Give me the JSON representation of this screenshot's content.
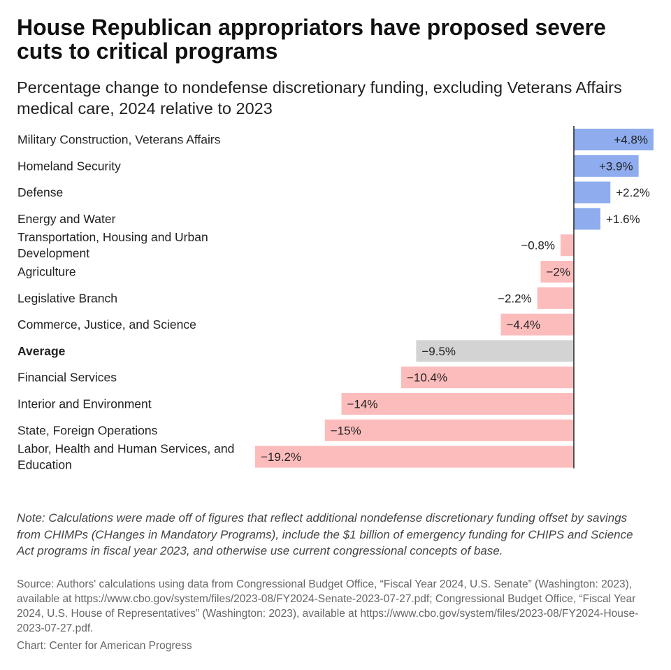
{
  "title": "House Republican appropriators have proposed severe cuts to critical programs",
  "subtitle": "Percentage change to nondefense discretionary funding, excluding Veterans Affairs medical care, 2024 relative to 2023",
  "note": "Note: Calculations were made off of figures that reflect additional nondefense discretionary funding offset by savings from CHIMPs (CHanges in Mandatory Programs), include the $1 billion of emergency funding for CHIPS and Science Act programs in fiscal year 2023, and otherwise use current congressional concepts of base.",
  "source": "Source: Authors' calculations using data from Congressional Budget Office, “Fiscal Year 2024, U.S. Senate” (Washington: 2023), available at https://www.cbo.gov/system/files/2023-08/FY2024-Senate-2023-07-27.pdf; Congressional Budget Office, “Fiscal Year 2024, U.S. House of Representatives” (Washington: 2023), available at https://www.cbo.gov/system/files/2023-08/FY2024-House-2023-07-27.pdf.",
  "credit": "Chart: Center for American Progress",
  "colors": {
    "positive": "#8eacee",
    "negative": "#fdbcbc",
    "average": "#d3d3d3",
    "axis": "#222222",
    "text": "#222222"
  },
  "chart_data": {
    "type": "bar",
    "orientation": "horizontal",
    "title": "House Republican appropriators have proposed severe cuts to critical programs",
    "subtitle": "Percentage change to nondefense discretionary funding, excluding Veterans Affairs medical care, 2024 relative to 2023",
    "xlabel": "",
    "ylabel": "",
    "xlim": [
      -19.2,
      4.8
    ],
    "grid": false,
    "legend": "none",
    "categories": [
      {
        "lines": [
          "Military Construction, Veterans Affairs"
        ],
        "bold": false
      },
      {
        "lines": [
          "Homeland Security"
        ],
        "bold": false
      },
      {
        "lines": [
          "Defense"
        ],
        "bold": false
      },
      {
        "lines": [
          "Energy and Water"
        ],
        "bold": false
      },
      {
        "lines": [
          "Transportation, Housing and Urban",
          "Development"
        ],
        "bold": false
      },
      {
        "lines": [
          "Agriculture"
        ],
        "bold": false
      },
      {
        "lines": [
          "Legislative Branch"
        ],
        "bold": false
      },
      {
        "lines": [
          "Commerce, Justice, and Science"
        ],
        "bold": false
      },
      {
        "lines": [
          "Average"
        ],
        "bold": true
      },
      {
        "lines": [
          "Financial Services"
        ],
        "bold": false
      },
      {
        "lines": [
          "Interior and Environment"
        ],
        "bold": false
      },
      {
        "lines": [
          "State, Foreign Operations"
        ],
        "bold": false
      },
      {
        "lines": [
          "Labor, Health and Human Services, and",
          "Education"
        ],
        "bold": false
      }
    ],
    "values": [
      4.8,
      3.9,
      2.2,
      1.6,
      -0.8,
      -2,
      -2.2,
      -4.4,
      -9.5,
      -10.4,
      -14,
      -15,
      -19.2
    ],
    "value_labels": [
      "+4.8%",
      "+3.9%",
      "+2.2%",
      "+1.6%",
      "−0.8%",
      "−2%",
      "−2.2%",
      "−4.4%",
      "−9.5%",
      "−10.4%",
      "−14%",
      "−15%",
      "−19.2%"
    ],
    "highlight": [
      false,
      false,
      false,
      false,
      false,
      false,
      false,
      false,
      true,
      false,
      false,
      false,
      false
    ]
  }
}
